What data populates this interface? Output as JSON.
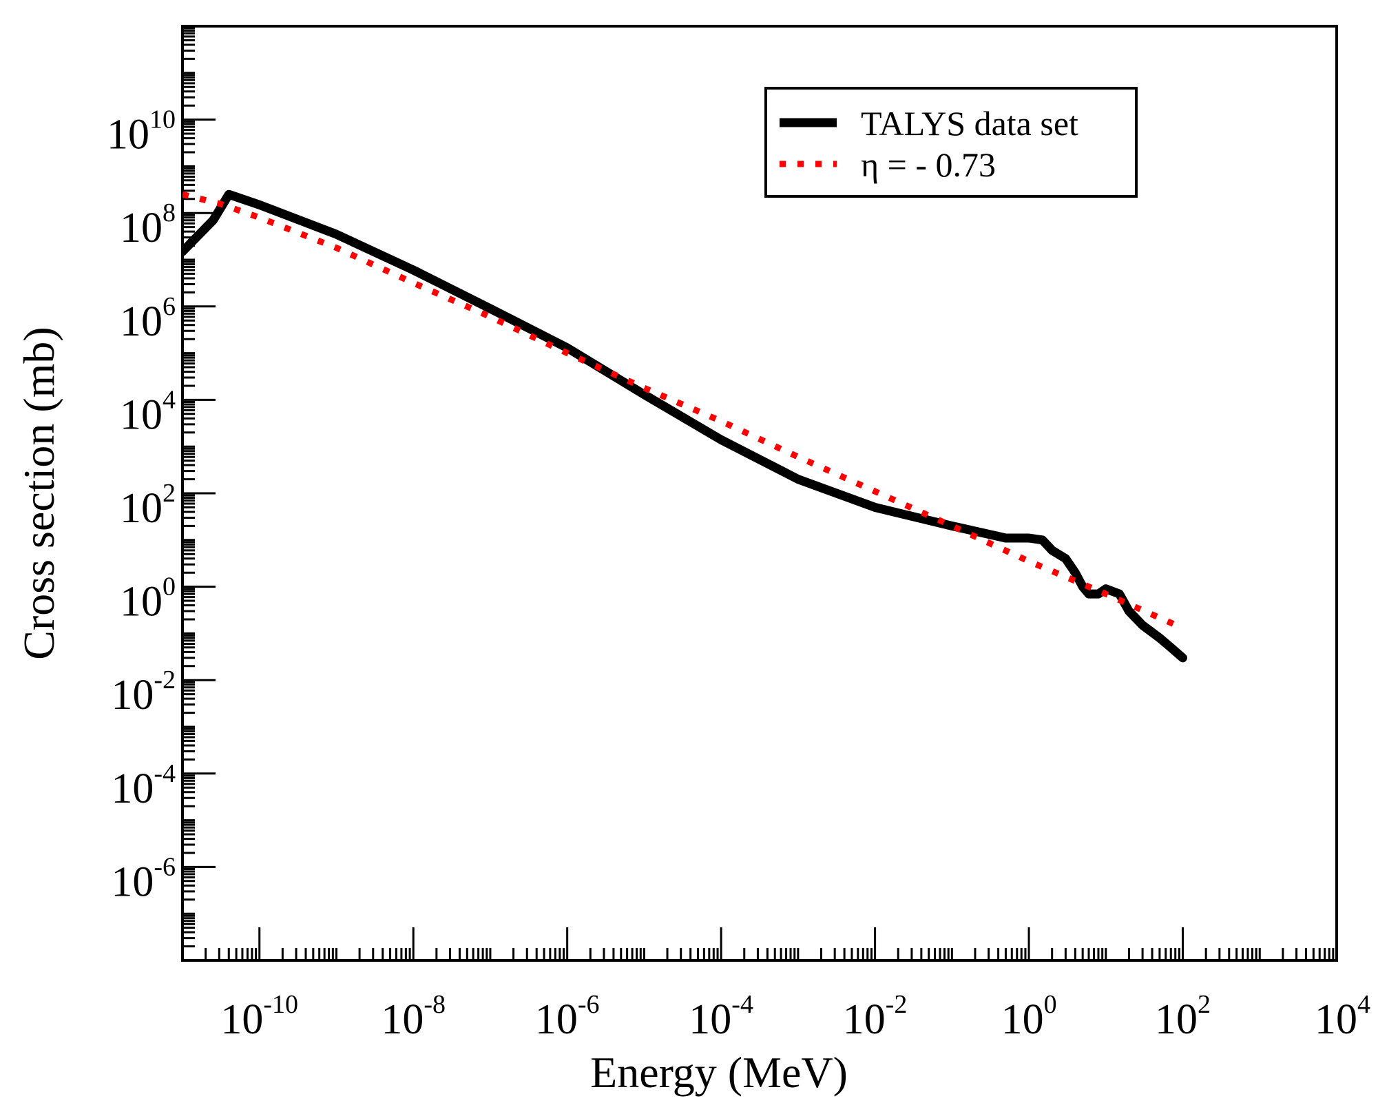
{
  "chart_data": {
    "type": "line",
    "title": "",
    "xlabel": "Energy (MeV)",
    "ylabel": "Cross section (mb)",
    "xscale": "log",
    "yscale": "log",
    "xlim": [
      1e-11,
      10000
    ],
    "ylim": [
      1e-08,
      1000000000000.0
    ],
    "x_ticks": [
      {
        "base": "10",
        "exp": "-10",
        "value": 1e-10
      },
      {
        "base": "10",
        "exp": "-8",
        "value": 1e-08
      },
      {
        "base": "10",
        "exp": "-6",
        "value": 1e-06
      },
      {
        "base": "10",
        "exp": "-4",
        "value": 0.0001
      },
      {
        "base": "10",
        "exp": "-2",
        "value": 0.01
      },
      {
        "base": "10",
        "exp": "0",
        "value": 1
      },
      {
        "base": "10",
        "exp": "2",
        "value": 100
      },
      {
        "base": "10",
        "exp": "4",
        "value": 10000
      }
    ],
    "y_ticks": [
      {
        "base": "10",
        "exp": "10",
        "value": 10000000000.0
      },
      {
        "base": "10",
        "exp": "8",
        "value": 100000000.0
      },
      {
        "base": "10",
        "exp": "6",
        "value": 1000000.0
      },
      {
        "base": "10",
        "exp": "4",
        "value": 10000.0
      },
      {
        "base": "10",
        "exp": "2",
        "value": 100
      },
      {
        "base": "10",
        "exp": "0",
        "value": 1
      },
      {
        "base": "10",
        "exp": "-2",
        "value": 0.01
      },
      {
        "base": "10",
        "exp": "-4",
        "value": 0.0001
      },
      {
        "base": "10",
        "exp": "-6",
        "value": 1e-06
      }
    ],
    "legend_position": "top-right",
    "series": [
      {
        "name": "TALYS data set",
        "style": "solid",
        "color": "#000000",
        "x": [
          1e-11,
          2.5e-11,
          4e-11,
          1e-10,
          1e-09,
          1e-08,
          1e-07,
          1e-06,
          1e-05,
          0.0001,
          0.001,
          0.01,
          0.1,
          0.5,
          1,
          1.5,
          2,
          3,
          4,
          5,
          6,
          8,
          10,
          15,
          20,
          30,
          50,
          70,
          100
        ],
        "y": [
          15000000.0,
          70000000.0,
          250000000.0,
          150000000.0,
          35000000.0,
          6000000.0,
          900000.0,
          130000.0,
          13000.0,
          1400.0,
          200,
          50,
          20,
          11,
          11,
          10,
          6,
          4,
          2,
          1,
          0.7,
          0.7,
          0.9,
          0.7,
          0.3,
          0.15,
          0.08,
          0.05,
          0.03
        ]
      },
      {
        "name": "η  = - 0.73",
        "style": "dotted",
        "color": "#ff0000",
        "x": [
          1e-11,
          3e-11,
          1e-10,
          1e-09,
          1e-08,
          1e-07,
          1e-06,
          1e-05,
          0.0001,
          0.001,
          0.01,
          0.1,
          1,
          10,
          100
        ],
        "y": [
          250000000.0,
          160000000.0,
          80000000.0,
          18000000.0,
          3200000.0,
          600000.0,
          100000.0,
          18000.0,
          3500.0,
          600,
          110,
          20,
          3.5,
          0.7,
          0.13
        ]
      }
    ]
  }
}
